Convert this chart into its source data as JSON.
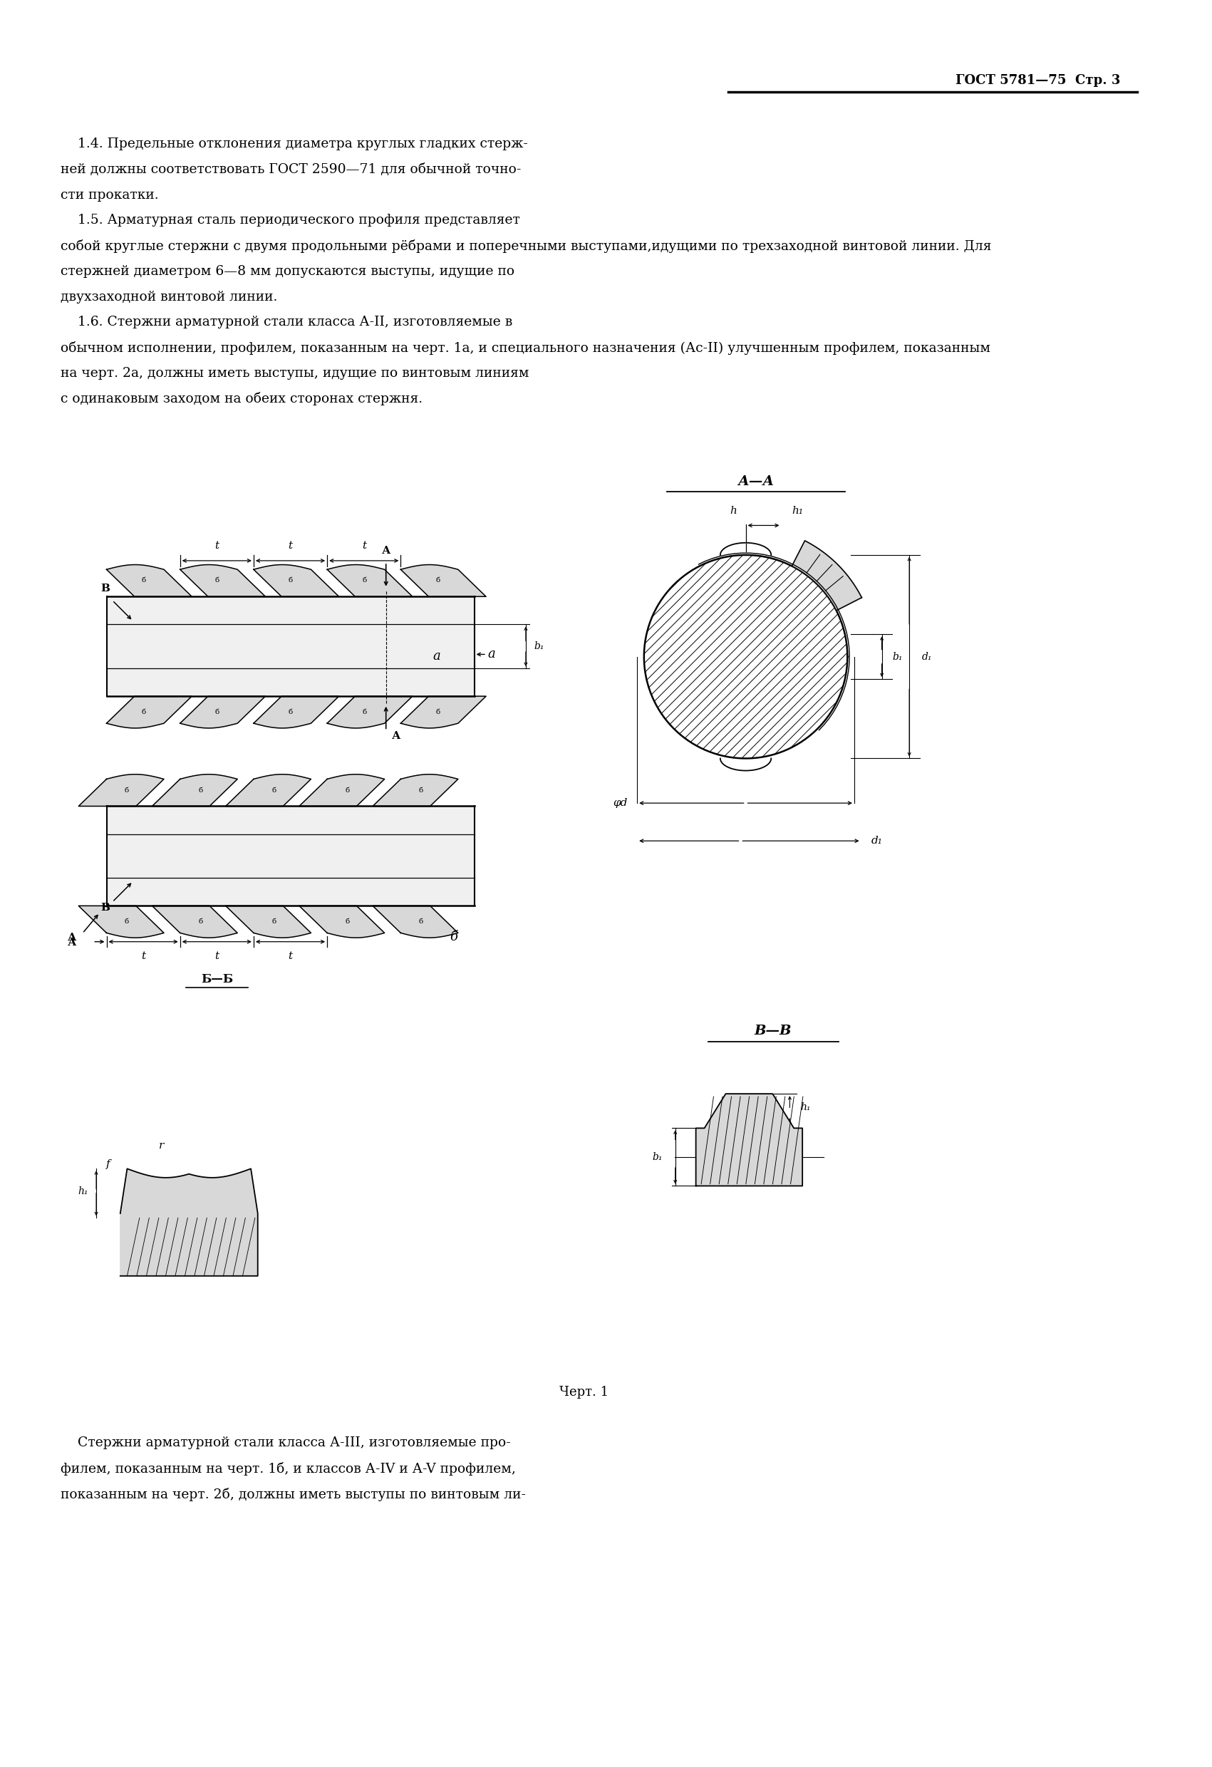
{
  "page_title": "ГОСТ 5781—75  Стр. 3",
  "p14_lines": [
    "    1.4. Предельные отклонения диаметра круглых гладких стерж-",
    "ней должны соответствовать ГОСТ 2590—71 для обычной точно-",
    "сти прокатки."
  ],
  "p15_lines": [
    "    1.5. Арматурная сталь периодического профиля представляет",
    "собой круглые стержни с двумя продольными рёбрами и поперечными выступами,идущими по трехзаходной винтовой линии. Для",
    "стержней диаметром 6—8 мм допускаются выступы, идущие по",
    "двухзаходной винтовой линии."
  ],
  "p16_lines": [
    "    1.6. Стержни арматурной стали класса А-II, изготовляемые в",
    "обычном исполнении, профилем, показанным на черт. 1а, и специального назначения (Ас-II) улучшенным профилем, показанным",
    "на черт. 2а, должны иметь выступы, идущие по винтовым линиям",
    "с одинаковым заходом на обеих сторонах стержня."
  ],
  "caption": "Черт. 1",
  "bottom_lines": [
    "    Стержни арматурной стали класса А-III, изготовляемые про-",
    "филем, показанным на черт. 1б, и классов А-IV и А-V профилем,",
    "показанным на черт. 2б, должны иметь выступы по винтовым ли-"
  ],
  "bg_color": "#ffffff"
}
